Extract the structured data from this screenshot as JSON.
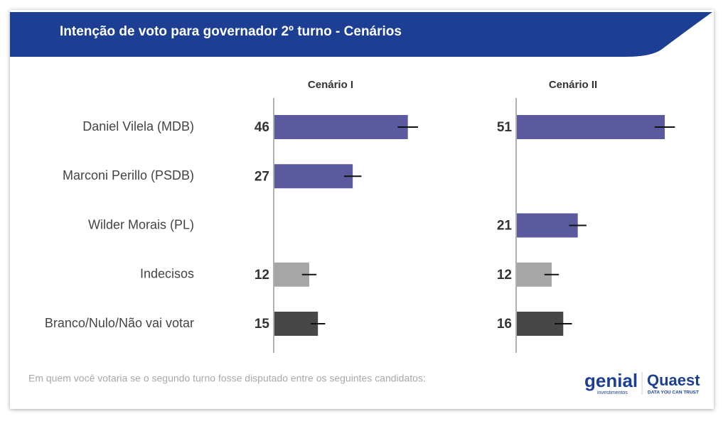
{
  "chart_data": {
    "type": "bar",
    "title": "Intenção de voto para governador 2º turno - Cenários",
    "categories": [
      "Daniel Vilela (MDB)",
      "Marconi Perillo (PSDB)",
      "Wilder Morais (PL)",
      "Indecisos",
      "Branco/Nulo/Não vai votar"
    ],
    "colors": [
      "#5b5a9e",
      "#5b5a9e",
      "#5b5a9e",
      "#a6a6a6",
      "#474747"
    ],
    "series": [
      {
        "name": "Cenário I",
        "values": [
          46,
          27,
          null,
          12,
          15
        ],
        "errors": [
          3.5,
          3,
          null,
          2.5,
          2.5
        ]
      },
      {
        "name": "Cenário II",
        "values": [
          51,
          null,
          21,
          12,
          16
        ],
        "errors": [
          3.5,
          null,
          3,
          2.5,
          3
        ]
      }
    ],
    "footnote": "Em quem você votaria se o segundo turno fosse disputado entre os seguintes candidatos:"
  },
  "logos": {
    "genial": "genial",
    "genial_sub": "investimentos",
    "quaest": "Quaest",
    "quaest_sub": "DATA YOU CAN TRUST"
  }
}
